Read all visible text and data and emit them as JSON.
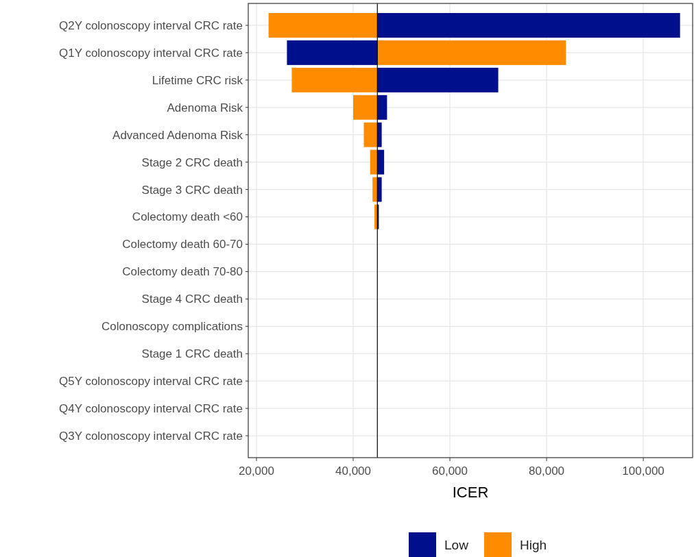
{
  "chart_data": {
    "type": "bar",
    "orientation": "horizontal",
    "xlabel": "ICER",
    "categories": [
      "Q2Y colonoscopy interval CRC rate",
      "Q1Y colonoscopy interval CRC rate",
      "Lifetime CRC risk",
      "Adenoma Risk",
      "Advanced Adenoma Risk",
      "Stage 2 CRC death",
      "Stage 3 CRC death",
      "Colectomy death <60",
      "Colectomy death 60-70",
      "Colectomy death 70-80",
      "Stage 4 CRC death",
      "Colonoscopy complications",
      "Stage 1 CRC death",
      "Q5Y colonoscopy interval CRC rate",
      "Q4Y colonoscopy interval CRC rate",
      "Q3Y colonoscopy interval CRC rate"
    ],
    "series": [
      {
        "name": "Low",
        "color": "#000f8c",
        "base": [
          45000,
          45000,
          45000,
          45000,
          45000,
          45000,
          45000,
          45000,
          null,
          null,
          null,
          null,
          null,
          null,
          null,
          null
        ],
        "values": [
          62600,
          -18700,
          25000,
          2000,
          900,
          1400,
          900,
          300,
          null,
          null,
          null,
          null,
          null,
          null,
          null,
          null
        ]
      },
      {
        "name": "High",
        "color": "#ff8c00",
        "base": [
          45000,
          45000,
          45000,
          45000,
          45000,
          45000,
          45000,
          45000,
          null,
          null,
          null,
          null,
          null,
          null,
          null,
          null
        ],
        "values": [
          -22500,
          39000,
          -17700,
          -5000,
          -2800,
          -1500,
          -1000,
          -600,
          null,
          null,
          null,
          null,
          null,
          null,
          null,
          null
        ]
      }
    ],
    "xlim": [
      18300,
      110200
    ],
    "xticks": [
      {
        "value": 20000,
        "label": "20,000"
      },
      {
        "value": 40000,
        "label": "40,000"
      },
      {
        "value": 60000,
        "label": "60,000"
      },
      {
        "value": 80000,
        "label": "80,000"
      },
      {
        "value": 100000,
        "label": "100,000"
      }
    ],
    "ref_lines": [
      {
        "axis": "x",
        "value": 45000,
        "color": "#000000"
      }
    ],
    "grid": true,
    "legend": "bottom"
  }
}
